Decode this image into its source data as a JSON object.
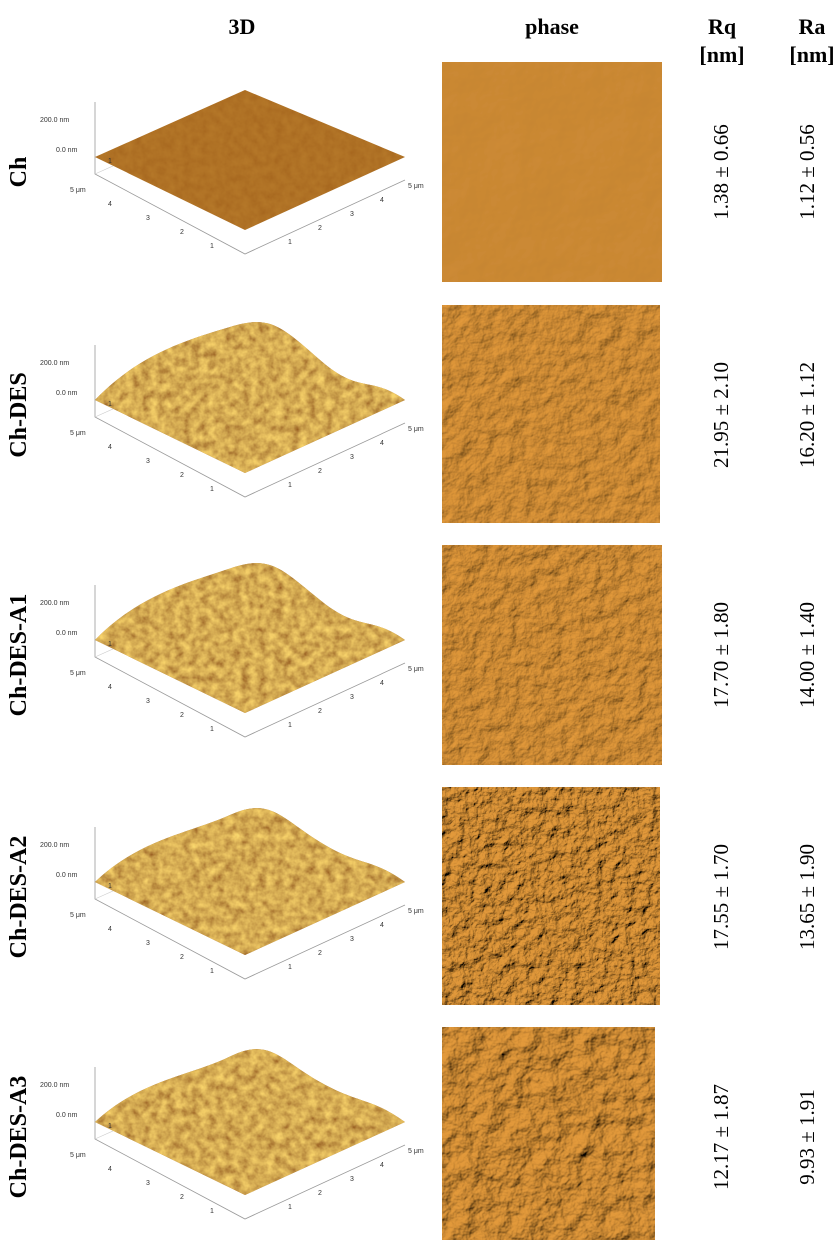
{
  "header": {
    "col_3d": "3D",
    "col_phase": "phase",
    "col_rq": [
      "Rq",
      "[nm]"
    ],
    "col_ra": [
      "Ra",
      "[nm]"
    ]
  },
  "axis_labels": {
    "z_top": "200.0 nm",
    "z_zero": "0.0 nm",
    "left_ticks": [
      "5 μm",
      "4",
      "3",
      "2",
      "1"
    ],
    "right_ticks": [
      "1",
      "2",
      "3",
      "4",
      "5 μm"
    ],
    "back_tick": "1"
  },
  "rows": [
    {
      "label": "Ch",
      "rq": "1.38 ± 0.66",
      "ra": "1.12 ± 0.56"
    },
    {
      "label": "Ch-DES",
      "rq": "21.95 ± 2.10",
      "ra": "16.20 ± 1.12"
    },
    {
      "label": "Ch-DES-A1",
      "rq": "17.70 ± 1.80",
      "ra": "14.00 ± 1.40"
    },
    {
      "label": "Ch-DES-A2",
      "rq": "17.55 ± 1.70",
      "ra": "13.65 ± 1.90"
    },
    {
      "label": "Ch-DES-A3",
      "rq": "12.17 ± 1.87",
      "ra": "9.93 ± 1.91"
    }
  ]
}
